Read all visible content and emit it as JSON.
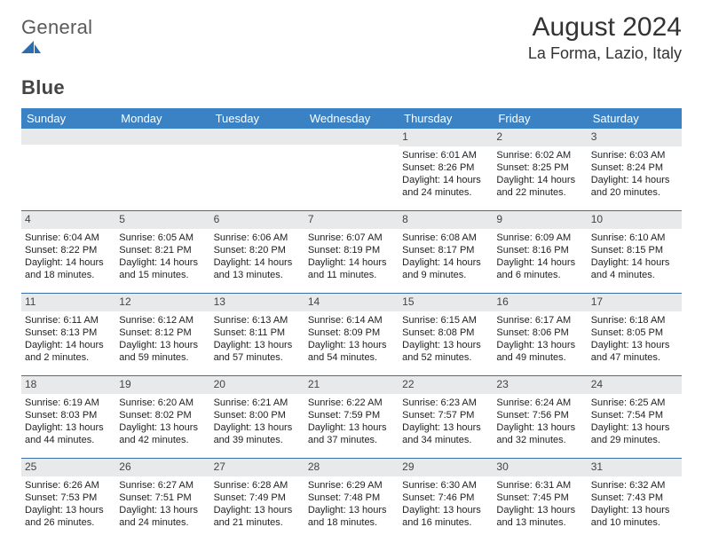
{
  "brand": {
    "text1": "General",
    "text2": "Blue",
    "logo_color": "#2a6db0"
  },
  "title": {
    "month": "August 2024",
    "location": "La Forma, Lazio, Italy"
  },
  "style": {
    "header_bg": "#3b82c4",
    "header_text": "#ffffff",
    "divider": "#3b6ea5",
    "daynum_bg": "#e8e9ea",
    "body_text": "#222222",
    "page_bg": "#ffffff",
    "font_family": "Arial",
    "title_fontsize": 30,
    "location_fontsize": 18,
    "weekday_fontsize": 13,
    "cell_fontsize": 11
  },
  "weekdays": [
    "Sunday",
    "Monday",
    "Tuesday",
    "Wednesday",
    "Thursday",
    "Friday",
    "Saturday"
  ],
  "weeks": [
    [
      {
        "day": "",
        "sunrise": "",
        "sunset": "",
        "daylight": ""
      },
      {
        "day": "",
        "sunrise": "",
        "sunset": "",
        "daylight": ""
      },
      {
        "day": "",
        "sunrise": "",
        "sunset": "",
        "daylight": ""
      },
      {
        "day": "",
        "sunrise": "",
        "sunset": "",
        "daylight": ""
      },
      {
        "day": "1",
        "sunrise": "Sunrise: 6:01 AM",
        "sunset": "Sunset: 8:26 PM",
        "daylight": "Daylight: 14 hours and 24 minutes."
      },
      {
        "day": "2",
        "sunrise": "Sunrise: 6:02 AM",
        "sunset": "Sunset: 8:25 PM",
        "daylight": "Daylight: 14 hours and 22 minutes."
      },
      {
        "day": "3",
        "sunrise": "Sunrise: 6:03 AM",
        "sunset": "Sunset: 8:24 PM",
        "daylight": "Daylight: 14 hours and 20 minutes."
      }
    ],
    [
      {
        "day": "4",
        "sunrise": "Sunrise: 6:04 AM",
        "sunset": "Sunset: 8:22 PM",
        "daylight": "Daylight: 14 hours and 18 minutes."
      },
      {
        "day": "5",
        "sunrise": "Sunrise: 6:05 AM",
        "sunset": "Sunset: 8:21 PM",
        "daylight": "Daylight: 14 hours and 15 minutes."
      },
      {
        "day": "6",
        "sunrise": "Sunrise: 6:06 AM",
        "sunset": "Sunset: 8:20 PM",
        "daylight": "Daylight: 14 hours and 13 minutes."
      },
      {
        "day": "7",
        "sunrise": "Sunrise: 6:07 AM",
        "sunset": "Sunset: 8:19 PM",
        "daylight": "Daylight: 14 hours and 11 minutes."
      },
      {
        "day": "8",
        "sunrise": "Sunrise: 6:08 AM",
        "sunset": "Sunset: 8:17 PM",
        "daylight": "Daylight: 14 hours and 9 minutes."
      },
      {
        "day": "9",
        "sunrise": "Sunrise: 6:09 AM",
        "sunset": "Sunset: 8:16 PM",
        "daylight": "Daylight: 14 hours and 6 minutes."
      },
      {
        "day": "10",
        "sunrise": "Sunrise: 6:10 AM",
        "sunset": "Sunset: 8:15 PM",
        "daylight": "Daylight: 14 hours and 4 minutes."
      }
    ],
    [
      {
        "day": "11",
        "sunrise": "Sunrise: 6:11 AM",
        "sunset": "Sunset: 8:13 PM",
        "daylight": "Daylight: 14 hours and 2 minutes."
      },
      {
        "day": "12",
        "sunrise": "Sunrise: 6:12 AM",
        "sunset": "Sunset: 8:12 PM",
        "daylight": "Daylight: 13 hours and 59 minutes."
      },
      {
        "day": "13",
        "sunrise": "Sunrise: 6:13 AM",
        "sunset": "Sunset: 8:11 PM",
        "daylight": "Daylight: 13 hours and 57 minutes."
      },
      {
        "day": "14",
        "sunrise": "Sunrise: 6:14 AM",
        "sunset": "Sunset: 8:09 PM",
        "daylight": "Daylight: 13 hours and 54 minutes."
      },
      {
        "day": "15",
        "sunrise": "Sunrise: 6:15 AM",
        "sunset": "Sunset: 8:08 PM",
        "daylight": "Daylight: 13 hours and 52 minutes."
      },
      {
        "day": "16",
        "sunrise": "Sunrise: 6:17 AM",
        "sunset": "Sunset: 8:06 PM",
        "daylight": "Daylight: 13 hours and 49 minutes."
      },
      {
        "day": "17",
        "sunrise": "Sunrise: 6:18 AM",
        "sunset": "Sunset: 8:05 PM",
        "daylight": "Daylight: 13 hours and 47 minutes."
      }
    ],
    [
      {
        "day": "18",
        "sunrise": "Sunrise: 6:19 AM",
        "sunset": "Sunset: 8:03 PM",
        "daylight": "Daylight: 13 hours and 44 minutes."
      },
      {
        "day": "19",
        "sunrise": "Sunrise: 6:20 AM",
        "sunset": "Sunset: 8:02 PM",
        "daylight": "Daylight: 13 hours and 42 minutes."
      },
      {
        "day": "20",
        "sunrise": "Sunrise: 6:21 AM",
        "sunset": "Sunset: 8:00 PM",
        "daylight": "Daylight: 13 hours and 39 minutes."
      },
      {
        "day": "21",
        "sunrise": "Sunrise: 6:22 AM",
        "sunset": "Sunset: 7:59 PM",
        "daylight": "Daylight: 13 hours and 37 minutes."
      },
      {
        "day": "22",
        "sunrise": "Sunrise: 6:23 AM",
        "sunset": "Sunset: 7:57 PM",
        "daylight": "Daylight: 13 hours and 34 minutes."
      },
      {
        "day": "23",
        "sunrise": "Sunrise: 6:24 AM",
        "sunset": "Sunset: 7:56 PM",
        "daylight": "Daylight: 13 hours and 32 minutes."
      },
      {
        "day": "24",
        "sunrise": "Sunrise: 6:25 AM",
        "sunset": "Sunset: 7:54 PM",
        "daylight": "Daylight: 13 hours and 29 minutes."
      }
    ],
    [
      {
        "day": "25",
        "sunrise": "Sunrise: 6:26 AM",
        "sunset": "Sunset: 7:53 PM",
        "daylight": "Daylight: 13 hours and 26 minutes."
      },
      {
        "day": "26",
        "sunrise": "Sunrise: 6:27 AM",
        "sunset": "Sunset: 7:51 PM",
        "daylight": "Daylight: 13 hours and 24 minutes."
      },
      {
        "day": "27",
        "sunrise": "Sunrise: 6:28 AM",
        "sunset": "Sunset: 7:49 PM",
        "daylight": "Daylight: 13 hours and 21 minutes."
      },
      {
        "day": "28",
        "sunrise": "Sunrise: 6:29 AM",
        "sunset": "Sunset: 7:48 PM",
        "daylight": "Daylight: 13 hours and 18 minutes."
      },
      {
        "day": "29",
        "sunrise": "Sunrise: 6:30 AM",
        "sunset": "Sunset: 7:46 PM",
        "daylight": "Daylight: 13 hours and 16 minutes."
      },
      {
        "day": "30",
        "sunrise": "Sunrise: 6:31 AM",
        "sunset": "Sunset: 7:45 PM",
        "daylight": "Daylight: 13 hours and 13 minutes."
      },
      {
        "day": "31",
        "sunrise": "Sunrise: 6:32 AM",
        "sunset": "Sunset: 7:43 PM",
        "daylight": "Daylight: 13 hours and 10 minutes."
      }
    ]
  ]
}
